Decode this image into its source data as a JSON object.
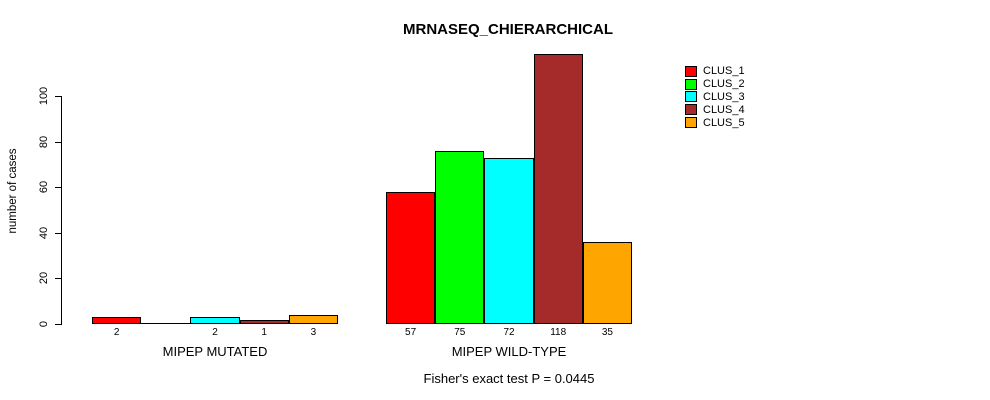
{
  "title": "MRNASEQ_CHIERARCHICAL",
  "y_axis": {
    "label": "number of cases"
  },
  "footnote": "Fisher's exact test P = 0.0445",
  "legend": {
    "entries": [
      {
        "label": "CLUS_1",
        "color": "#FF0000"
      },
      {
        "label": "CLUS_2",
        "color": "#00FF00"
      },
      {
        "label": "CLUS_3",
        "color": "#00FFFF"
      },
      {
        "label": "CLUS_4",
        "color": "#A52A2A"
      },
      {
        "label": "CLUS_5",
        "color": "#FFA500"
      }
    ]
  },
  "chart_data": {
    "type": "bar",
    "title": "MRNASEQ_CHIERARCHICAL",
    "ylabel": "number of cases",
    "ylim": [
      0,
      100
    ],
    "yticks": [
      0,
      20,
      40,
      60,
      80,
      100
    ],
    "grid": false,
    "legend_position": "right-outside-top",
    "series_names": [
      "CLUS_1",
      "CLUS_2",
      "CLUS_3",
      "CLUS_4",
      "CLUS_5"
    ],
    "series_colors": [
      "#FF0000",
      "#00FF00",
      "#00FFFF",
      "#A52A2A",
      "#FFA500"
    ],
    "groups": [
      {
        "label": "MIPEP MUTATED",
        "values": [
          2,
          0,
          2,
          1,
          3
        ],
        "bar_labels": [
          "2",
          "",
          "2",
          "1",
          "3"
        ]
      },
      {
        "label": "MIPEP WILD-TYPE",
        "values": [
          57,
          75,
          72,
          118,
          35
        ],
        "bar_labels": [
          "57",
          "75",
          "72",
          "118",
          "35"
        ]
      }
    ],
    "annotation": "Fisher's exact test P = 0.0445"
  }
}
